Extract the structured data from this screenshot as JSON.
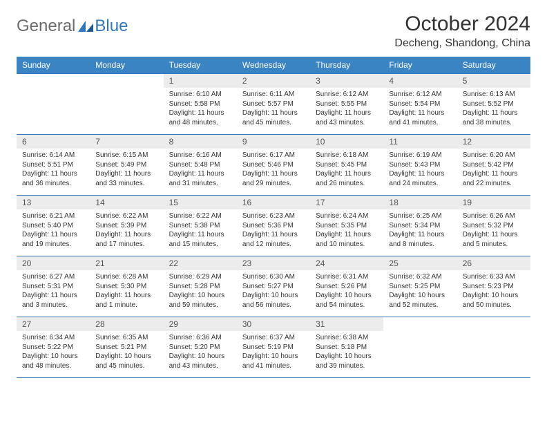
{
  "logo": {
    "text1": "General",
    "text2": "Blue",
    "brand_color": "#2f78bf"
  },
  "title": "October 2024",
  "location": "Decheng, Shandong, China",
  "day_headers": [
    "Sunday",
    "Monday",
    "Tuesday",
    "Wednesday",
    "Thursday",
    "Friday",
    "Saturday"
  ],
  "header_bg": "#3b84c4",
  "daynum_bg": "#ececec",
  "border_color": "#2f78bf",
  "weeks": [
    [
      {
        "empty": true
      },
      {
        "empty": true
      },
      {
        "num": "1",
        "sunrise": "Sunrise: 6:10 AM",
        "sunset": "Sunset: 5:58 PM",
        "daylight": "Daylight: 11 hours and 48 minutes."
      },
      {
        "num": "2",
        "sunrise": "Sunrise: 6:11 AM",
        "sunset": "Sunset: 5:57 PM",
        "daylight": "Daylight: 11 hours and 45 minutes."
      },
      {
        "num": "3",
        "sunrise": "Sunrise: 6:12 AM",
        "sunset": "Sunset: 5:55 PM",
        "daylight": "Daylight: 11 hours and 43 minutes."
      },
      {
        "num": "4",
        "sunrise": "Sunrise: 6:12 AM",
        "sunset": "Sunset: 5:54 PM",
        "daylight": "Daylight: 11 hours and 41 minutes."
      },
      {
        "num": "5",
        "sunrise": "Sunrise: 6:13 AM",
        "sunset": "Sunset: 5:52 PM",
        "daylight": "Daylight: 11 hours and 38 minutes."
      }
    ],
    [
      {
        "num": "6",
        "sunrise": "Sunrise: 6:14 AM",
        "sunset": "Sunset: 5:51 PM",
        "daylight": "Daylight: 11 hours and 36 minutes."
      },
      {
        "num": "7",
        "sunrise": "Sunrise: 6:15 AM",
        "sunset": "Sunset: 5:49 PM",
        "daylight": "Daylight: 11 hours and 33 minutes."
      },
      {
        "num": "8",
        "sunrise": "Sunrise: 6:16 AM",
        "sunset": "Sunset: 5:48 PM",
        "daylight": "Daylight: 11 hours and 31 minutes."
      },
      {
        "num": "9",
        "sunrise": "Sunrise: 6:17 AM",
        "sunset": "Sunset: 5:46 PM",
        "daylight": "Daylight: 11 hours and 29 minutes."
      },
      {
        "num": "10",
        "sunrise": "Sunrise: 6:18 AM",
        "sunset": "Sunset: 5:45 PM",
        "daylight": "Daylight: 11 hours and 26 minutes."
      },
      {
        "num": "11",
        "sunrise": "Sunrise: 6:19 AM",
        "sunset": "Sunset: 5:43 PM",
        "daylight": "Daylight: 11 hours and 24 minutes."
      },
      {
        "num": "12",
        "sunrise": "Sunrise: 6:20 AM",
        "sunset": "Sunset: 5:42 PM",
        "daylight": "Daylight: 11 hours and 22 minutes."
      }
    ],
    [
      {
        "num": "13",
        "sunrise": "Sunrise: 6:21 AM",
        "sunset": "Sunset: 5:40 PM",
        "daylight": "Daylight: 11 hours and 19 minutes."
      },
      {
        "num": "14",
        "sunrise": "Sunrise: 6:22 AM",
        "sunset": "Sunset: 5:39 PM",
        "daylight": "Daylight: 11 hours and 17 minutes."
      },
      {
        "num": "15",
        "sunrise": "Sunrise: 6:22 AM",
        "sunset": "Sunset: 5:38 PM",
        "daylight": "Daylight: 11 hours and 15 minutes."
      },
      {
        "num": "16",
        "sunrise": "Sunrise: 6:23 AM",
        "sunset": "Sunset: 5:36 PM",
        "daylight": "Daylight: 11 hours and 12 minutes."
      },
      {
        "num": "17",
        "sunrise": "Sunrise: 6:24 AM",
        "sunset": "Sunset: 5:35 PM",
        "daylight": "Daylight: 11 hours and 10 minutes."
      },
      {
        "num": "18",
        "sunrise": "Sunrise: 6:25 AM",
        "sunset": "Sunset: 5:34 PM",
        "daylight": "Daylight: 11 hours and 8 minutes."
      },
      {
        "num": "19",
        "sunrise": "Sunrise: 6:26 AM",
        "sunset": "Sunset: 5:32 PM",
        "daylight": "Daylight: 11 hours and 5 minutes."
      }
    ],
    [
      {
        "num": "20",
        "sunrise": "Sunrise: 6:27 AM",
        "sunset": "Sunset: 5:31 PM",
        "daylight": "Daylight: 11 hours and 3 minutes."
      },
      {
        "num": "21",
        "sunrise": "Sunrise: 6:28 AM",
        "sunset": "Sunset: 5:30 PM",
        "daylight": "Daylight: 11 hours and 1 minute."
      },
      {
        "num": "22",
        "sunrise": "Sunrise: 6:29 AM",
        "sunset": "Sunset: 5:28 PM",
        "daylight": "Daylight: 10 hours and 59 minutes."
      },
      {
        "num": "23",
        "sunrise": "Sunrise: 6:30 AM",
        "sunset": "Sunset: 5:27 PM",
        "daylight": "Daylight: 10 hours and 56 minutes."
      },
      {
        "num": "24",
        "sunrise": "Sunrise: 6:31 AM",
        "sunset": "Sunset: 5:26 PM",
        "daylight": "Daylight: 10 hours and 54 minutes."
      },
      {
        "num": "25",
        "sunrise": "Sunrise: 6:32 AM",
        "sunset": "Sunset: 5:25 PM",
        "daylight": "Daylight: 10 hours and 52 minutes."
      },
      {
        "num": "26",
        "sunrise": "Sunrise: 6:33 AM",
        "sunset": "Sunset: 5:23 PM",
        "daylight": "Daylight: 10 hours and 50 minutes."
      }
    ],
    [
      {
        "num": "27",
        "sunrise": "Sunrise: 6:34 AM",
        "sunset": "Sunset: 5:22 PM",
        "daylight": "Daylight: 10 hours and 48 minutes."
      },
      {
        "num": "28",
        "sunrise": "Sunrise: 6:35 AM",
        "sunset": "Sunset: 5:21 PM",
        "daylight": "Daylight: 10 hours and 45 minutes."
      },
      {
        "num": "29",
        "sunrise": "Sunrise: 6:36 AM",
        "sunset": "Sunset: 5:20 PM",
        "daylight": "Daylight: 10 hours and 43 minutes."
      },
      {
        "num": "30",
        "sunrise": "Sunrise: 6:37 AM",
        "sunset": "Sunset: 5:19 PM",
        "daylight": "Daylight: 10 hours and 41 minutes."
      },
      {
        "num": "31",
        "sunrise": "Sunrise: 6:38 AM",
        "sunset": "Sunset: 5:18 PM",
        "daylight": "Daylight: 10 hours and 39 minutes."
      },
      {
        "empty": true
      },
      {
        "empty": true
      }
    ]
  ]
}
